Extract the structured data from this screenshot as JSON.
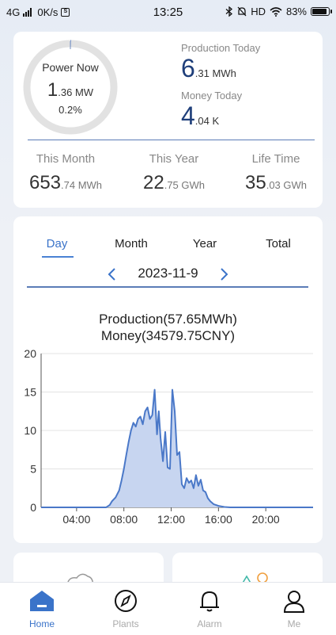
{
  "status_bar": {
    "network": "4G",
    "speed": "0K/s",
    "time": "13:25",
    "hd": "HD",
    "battery": "83%"
  },
  "summary": {
    "power_now_label": "Power Now",
    "power_now_value": "1",
    "power_now_unit": ".36 MW",
    "power_now_percent": "0.2%",
    "power_now_fraction": 0.002,
    "production_today_label": "Production Today",
    "production_today_value": "6",
    "production_today_unit": ".31 MWh",
    "money_today_label": "Money Today",
    "money_today_value": "4",
    "money_today_unit": ".04 K",
    "this_month_label": "This Month",
    "this_month_value": "653",
    "this_month_unit": ".74 MWh",
    "this_year_label": "This Year",
    "this_year_value": "22",
    "this_year_unit": ".75 GWh",
    "life_time_label": "Life Time",
    "life_time_value": "35",
    "life_time_unit": ".03 GWh"
  },
  "tabs": {
    "day": "Day",
    "month": "Month",
    "year": "Year",
    "total": "Total"
  },
  "date": "2023-11-9",
  "chart_title_1": "Production(57.65MWh)",
  "chart_title_2": "Money(34579.75CNY)",
  "chart_data": {
    "type": "area",
    "title": "Production(57.65MWh) Money(34579.75CNY)",
    "xlabel": "",
    "ylabel": "",
    "ylim": [
      0,
      20
    ],
    "yticks": [
      "0",
      "5",
      "10",
      "15",
      "20"
    ],
    "xlim_hours": [
      1,
      24
    ],
    "xticks": [
      "04:00",
      "08:00",
      "12:00",
      "16:00",
      "20:00"
    ],
    "grid": true,
    "color": "#4a78c8",
    "fill": "#c7d5f0",
    "series": [
      {
        "x_hours": [
          1,
          6.5,
          6.8,
          7.0,
          7.3,
          7.6,
          7.8,
          8.0,
          8.2,
          8.4,
          8.6,
          8.8,
          9.0,
          9.2,
          9.4,
          9.6,
          9.8,
          10.0,
          10.2,
          10.4,
          10.6,
          10.8,
          10.95,
          11.1,
          11.3,
          11.5,
          11.7,
          11.9,
          12.1,
          12.3,
          12.5,
          12.7,
          12.9,
          13.1,
          13.3,
          13.5,
          13.7,
          13.9,
          14.1,
          14.3,
          14.5,
          14.7,
          14.9,
          15.1,
          15.3,
          15.6,
          16.0,
          16.5,
          17.0,
          24
        ],
        "y": [
          0,
          0,
          0.3,
          0.8,
          1.3,
          2.2,
          3.5,
          5.0,
          6.8,
          8.5,
          10.0,
          11.0,
          10.5,
          11.5,
          11.8,
          10.8,
          12.5,
          13.0,
          11.5,
          12.0,
          15.3,
          9.5,
          12.5,
          9.0,
          6.0,
          9.8,
          5.2,
          5.0,
          15.3,
          12.5,
          6.8,
          7.2,
          3.0,
          2.5,
          3.8,
          3.2,
          3.5,
          2.5,
          4.2,
          2.8,
          3.6,
          2.2,
          2.0,
          1.2,
          0.8,
          0.4,
          0.2,
          0.05,
          0,
          0
        ]
      }
    ]
  },
  "nav": {
    "home": "Home",
    "plants": "Plants",
    "alarm": "Alarm",
    "me": "Me"
  },
  "colors": {
    "accent": "#3a73c9",
    "number": "#1f3f7a"
  }
}
